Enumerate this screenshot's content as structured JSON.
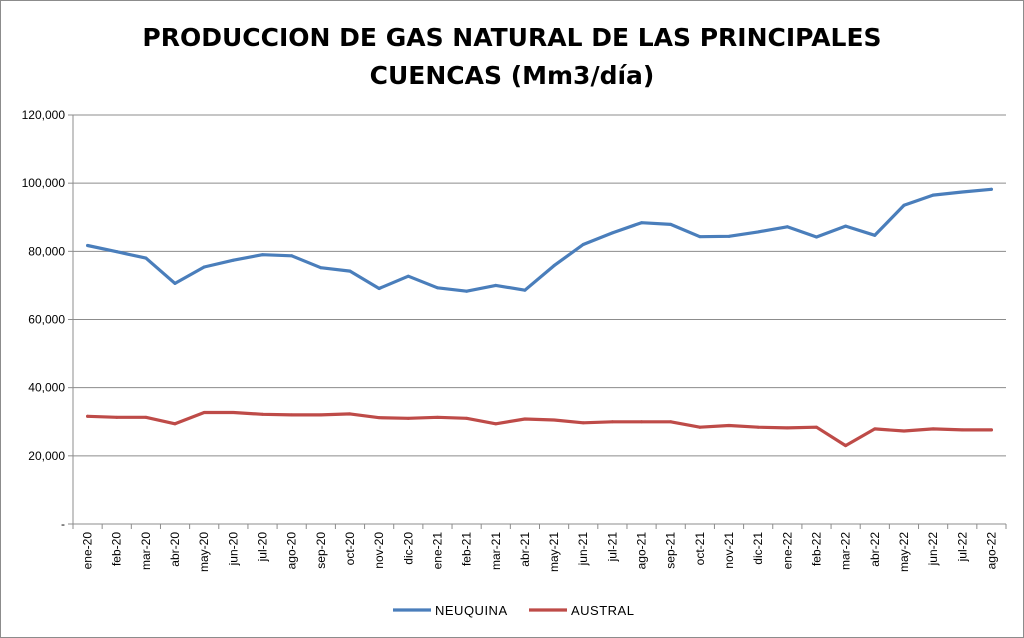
{
  "chart_data": {
    "type": "line",
    "title_lines": [
      "PRODUCCION DE GAS NATURAL DE LAS PRINCIPALES",
      "CUENCAS (Mm3/día)"
    ],
    "xlabel": "",
    "ylabel": "",
    "ylim": [
      0,
      120000
    ],
    "y_ticks": [
      0,
      20000,
      40000,
      60000,
      80000,
      100000,
      120000
    ],
    "y_tick_labels": [
      "-",
      "20,000",
      "40,000",
      "60,000",
      "80,000",
      "100,000",
      "120,000"
    ],
    "grid": "horizontal",
    "legend_position": "bottom",
    "categories": [
      "ene-20",
      "feb-20",
      "mar-20",
      "abr-20",
      "may-20",
      "jun-20",
      "jul-20",
      "ago-20",
      "sep-20",
      "oct-20",
      "nov-20",
      "dic-20",
      "ene-21",
      "feb-21",
      "mar-21",
      "abr-21",
      "may-21",
      "jun-21",
      "jul-21",
      "ago-21",
      "sep-21",
      "oct-21",
      "nov-21",
      "dic-21",
      "ene-22",
      "feb-22",
      "mar-22",
      "abr-22",
      "may-22",
      "jun-22",
      "jul-22",
      "ago-22"
    ],
    "series": [
      {
        "name": "NEUQUINA",
        "color": "#4a7ebb",
        "values": [
          81700,
          79900,
          78000,
          70600,
          75400,
          77400,
          79000,
          78700,
          75200,
          74200,
          69100,
          72700,
          69300,
          68300,
          70000,
          68600,
          75800,
          82000,
          85400,
          88400,
          87900,
          84300,
          84400,
          85700,
          87200,
          84200,
          87400,
          84700,
          93500,
          96500,
          97400,
          98200
        ]
      },
      {
        "name": "AUSTRAL",
        "color": "#be4b48",
        "values": [
          31600,
          31300,
          31300,
          29400,
          32700,
          32700,
          32200,
          32000,
          32000,
          32300,
          31200,
          31000,
          31300,
          31000,
          29400,
          30800,
          30500,
          29700,
          30000,
          30000,
          30000,
          28400,
          28900,
          28400,
          28200,
          28400,
          23000,
          27900,
          27300,
          27900,
          27600,
          27600
        ]
      }
    ]
  }
}
